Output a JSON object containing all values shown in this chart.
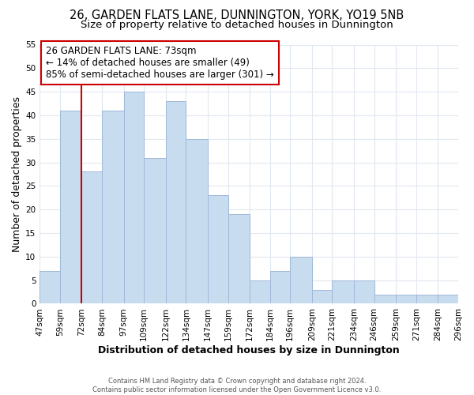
{
  "title": "26, GARDEN FLATS LANE, DUNNINGTON, YORK, YO19 5NB",
  "subtitle": "Size of property relative to detached houses in Dunnington",
  "xlabel": "Distribution of detached houses by size in Dunnington",
  "ylabel": "Number of detached properties",
  "footer_lines": [
    "Contains HM Land Registry data © Crown copyright and database right 2024.",
    "Contains public sector information licensed under the Open Government Licence v3.0."
  ],
  "bin_edges": [
    47,
    59,
    72,
    84,
    97,
    109,
    122,
    134,
    147,
    159,
    172,
    184,
    196,
    209,
    221,
    234,
    246,
    259,
    271,
    284,
    296
  ],
  "bin_labels": [
    "47sqm",
    "59sqm",
    "72sqm",
    "84sqm",
    "97sqm",
    "109sqm",
    "122sqm",
    "134sqm",
    "147sqm",
    "159sqm",
    "172sqm",
    "184sqm",
    "196sqm",
    "209sqm",
    "221sqm",
    "234sqm",
    "246sqm",
    "259sqm",
    "271sqm",
    "284sqm",
    "296sqm"
  ],
  "counts": [
    7,
    41,
    28,
    41,
    45,
    31,
    43,
    35,
    23,
    19,
    5,
    7,
    10,
    3,
    5,
    5,
    2,
    2,
    2,
    2
  ],
  "bar_color": "#c8dcf0",
  "bar_edge_color": "#a0b8d8",
  "property_line_x": 72,
  "annotation_title": "26 GARDEN FLATS LANE: 73sqm",
  "annotation_line1": "← 14% of detached houses are smaller (49)",
  "annotation_line2": "85% of semi-detached houses are larger (301) →",
  "annotation_box_edge": "#cc0000",
  "property_line_color": "#cc0000",
  "ylim": [
    0,
    55
  ],
  "yticks": [
    0,
    5,
    10,
    15,
    20,
    25,
    30,
    35,
    40,
    45,
    50,
    55
  ],
  "background_color": "#ffffff",
  "plot_bg_color": "#ffffff",
  "grid_color": "#e0e8f0",
  "title_fontsize": 10.5,
  "subtitle_fontsize": 9.5,
  "axis_label_fontsize": 9,
  "tick_fontsize": 7.5,
  "annotation_fontsize": 8.5
}
